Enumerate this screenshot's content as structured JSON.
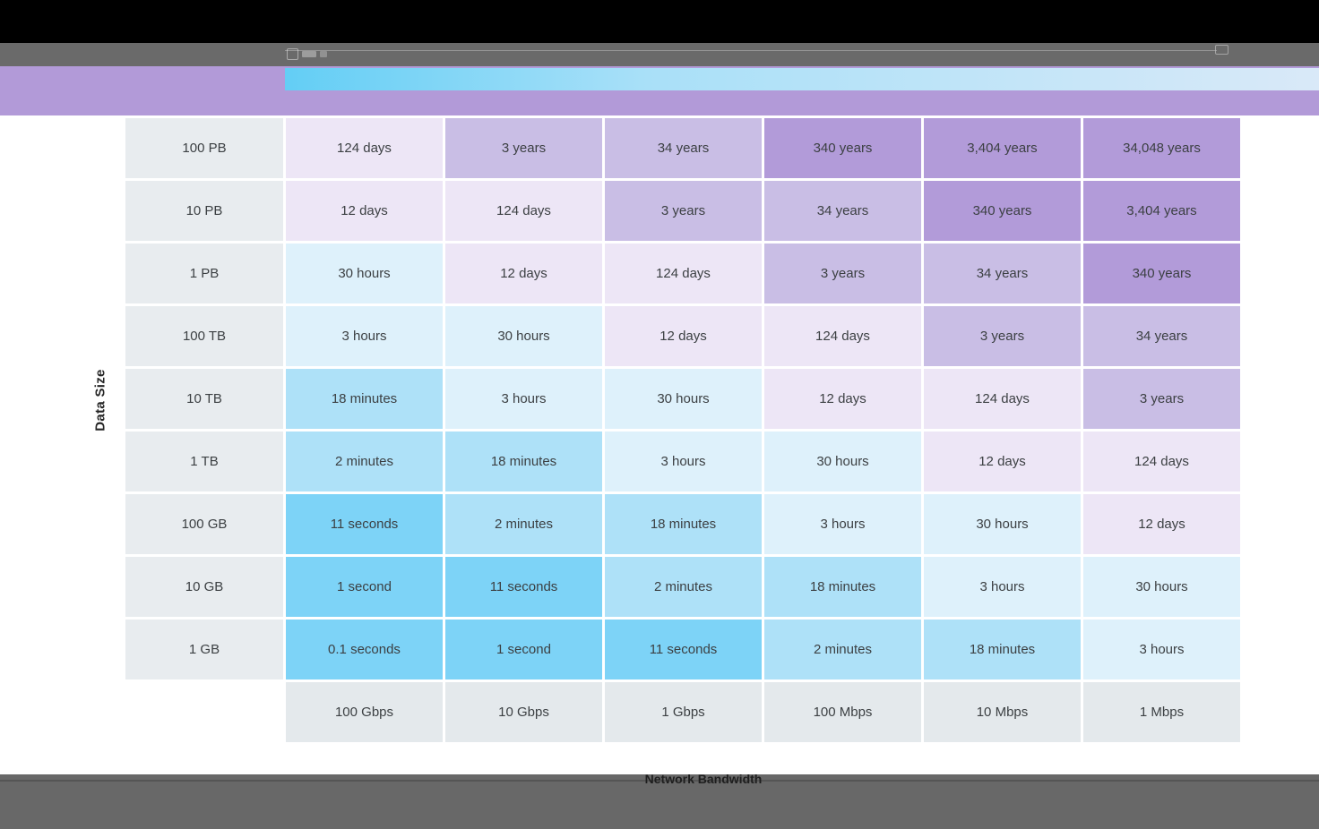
{
  "chart_data": {
    "type": "heatmap",
    "xlabel": "Network Bandwidth",
    "ylabel": "Data Size",
    "rows": [
      "100 PB",
      "10 PB",
      "1 PB",
      "100 TB",
      "10 TB",
      "1 TB",
      "100 GB",
      "10 GB",
      "1 GB"
    ],
    "columns": [
      "100 Gbps",
      "10 Gbps",
      "1 Gbps",
      "100 Mbps",
      "10 Mbps",
      "1 Mbps"
    ],
    "cells": [
      [
        "124 days",
        "3 years",
        "34 years",
        "340 years",
        "3,404 years",
        "34,048 years"
      ],
      [
        "12 days",
        "124 days",
        "3 years",
        "34 years",
        "340 years",
        "3,404 years"
      ],
      [
        "30 hours",
        "12 days",
        "124 days",
        "3 years",
        "34 years",
        "340 years"
      ],
      [
        "3 hours",
        "30 hours",
        "12 days",
        "124 days",
        "3 years",
        "34 years"
      ],
      [
        "18 minutes",
        "3 hours",
        "30 hours",
        "12 days",
        "124 days",
        "3 years"
      ],
      [
        "2 minutes",
        "18 minutes",
        "3 hours",
        "30 hours",
        "12 days",
        "124 days"
      ],
      [
        "11 seconds",
        "2 minutes",
        "18 minutes",
        "3 hours",
        "30 hours",
        "12 days"
      ],
      [
        "1 second",
        "11 seconds",
        "2 minutes",
        "18 minutes",
        "3 hours",
        "30 hours"
      ],
      [
        "0.1 seconds",
        "1 second",
        "11 seconds",
        "2 minutes",
        "18 minutes",
        "3 hours"
      ]
    ],
    "palette": {
      "seconds": "#7dd3f7",
      "minutes": "#aee1f8",
      "hours": "#def1fb",
      "days": "#ede6f6",
      "years_small": "#c9bee5",
      "years_large": "#b29bd9",
      "row_header": "#e8ecef",
      "col_header": "#e4e9ec"
    },
    "legend": {
      "banner_purple": "#b29ad8",
      "gradient_start": "#63cef5",
      "gradient_mid": "#a9e0f8",
      "gradient_end": "#d9e9f8"
    }
  }
}
